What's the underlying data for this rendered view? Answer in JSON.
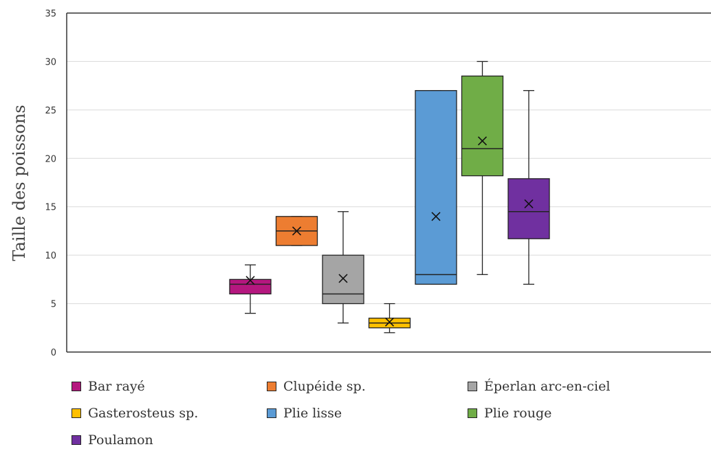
{
  "chart_data": {
    "type": "boxplot",
    "title": "",
    "xlabel": "",
    "ylabel": "Taille des poissons",
    "ylim": [
      0,
      35
    ],
    "yticks": [
      0,
      5,
      10,
      15,
      20,
      25,
      30,
      35
    ],
    "grid": true,
    "legend_position": "bottom",
    "series": [
      {
        "name": "Bar rayé",
        "color": "#B5177F",
        "min": 4,
        "q1": 6,
        "median": 7,
        "q3": 7.5,
        "max": 9,
        "mean": 7.4
      },
      {
        "name": "Clupéide sp.",
        "color": "#ED7D31",
        "min": 11,
        "q1": 11,
        "median": 12.5,
        "q3": 14,
        "max": 14,
        "mean": 12.5
      },
      {
        "name": "Éperlan arc-en-ciel",
        "color": "#A5A5A5",
        "min": 3,
        "q1": 5,
        "median": 6,
        "q3": 10,
        "max": 14.5,
        "mean": 7.6
      },
      {
        "name": "Gasterosteus sp.",
        "color": "#FFC000",
        "min": 2,
        "q1": 2.5,
        "median": 3,
        "q3": 3.5,
        "max": 5,
        "mean": 3.1
      },
      {
        "name": "Plie lisse",
        "color": "#5B9BD5",
        "min": 7,
        "q1": 7,
        "median": 8,
        "q3": 27,
        "max": 27,
        "mean": 14
      },
      {
        "name": "Plie rouge",
        "color": "#70AD47",
        "min": 8,
        "q1": 18.2,
        "median": 21,
        "q3": 28.5,
        "max": 30,
        "mean": 21.8
      },
      {
        "name": "Poulamon",
        "color": "#7030A0",
        "min": 7,
        "q1": 11.7,
        "median": 14.5,
        "q3": 17.9,
        "max": 27,
        "mean": 15.3
      }
    ]
  }
}
